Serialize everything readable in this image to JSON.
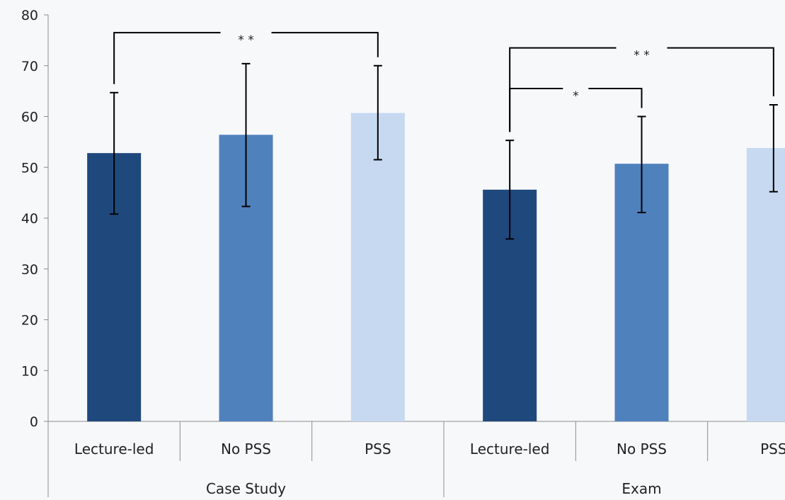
{
  "chart_data": {
    "type": "bar",
    "title": "",
    "xlabel": "",
    "ylabel": "",
    "ylim": [
      0,
      80
    ],
    "yticks": [
      0,
      10,
      20,
      30,
      40,
      50,
      60,
      70,
      80
    ],
    "grid": false,
    "legend": "none",
    "groups": [
      {
        "label": "Case Study",
        "bars": [
          {
            "label": "Lecture-led",
            "value": 52.8,
            "err_low": 40.8,
            "err_high": 64.7,
            "color": "#1f497d"
          },
          {
            "label": "No PSS",
            "value": 56.4,
            "err_low": 42.3,
            "err_high": 70.4,
            "color": "#4f81bd"
          },
          {
            "label": "PSS",
            "value": 60.7,
            "err_low": 51.5,
            "err_high": 70.0,
            "color": "#c6d9f1"
          }
        ]
      },
      {
        "label": "Exam",
        "bars": [
          {
            "label": "Lecture-led",
            "value": 45.6,
            "err_low": 35.9,
            "err_high": 55.3,
            "color": "#1f497d"
          },
          {
            "label": "No PSS",
            "value": 50.7,
            "err_low": 41.1,
            "err_high": 60.0,
            "color": "#4f81bd"
          },
          {
            "label": "PSS",
            "value": 53.8,
            "err_low": 45.2,
            "err_high": 62.3,
            "color": "#c6d9f1"
          }
        ]
      }
    ],
    "significance": [
      {
        "group": 0,
        "from": 0,
        "to": 2,
        "label": "**",
        "level": 76.5
      },
      {
        "group": 1,
        "from": 0,
        "to": 2,
        "label": "**",
        "level": 73.5
      },
      {
        "group": 1,
        "from": 0,
        "to": 1,
        "label": "*",
        "level": 65.5
      }
    ]
  }
}
